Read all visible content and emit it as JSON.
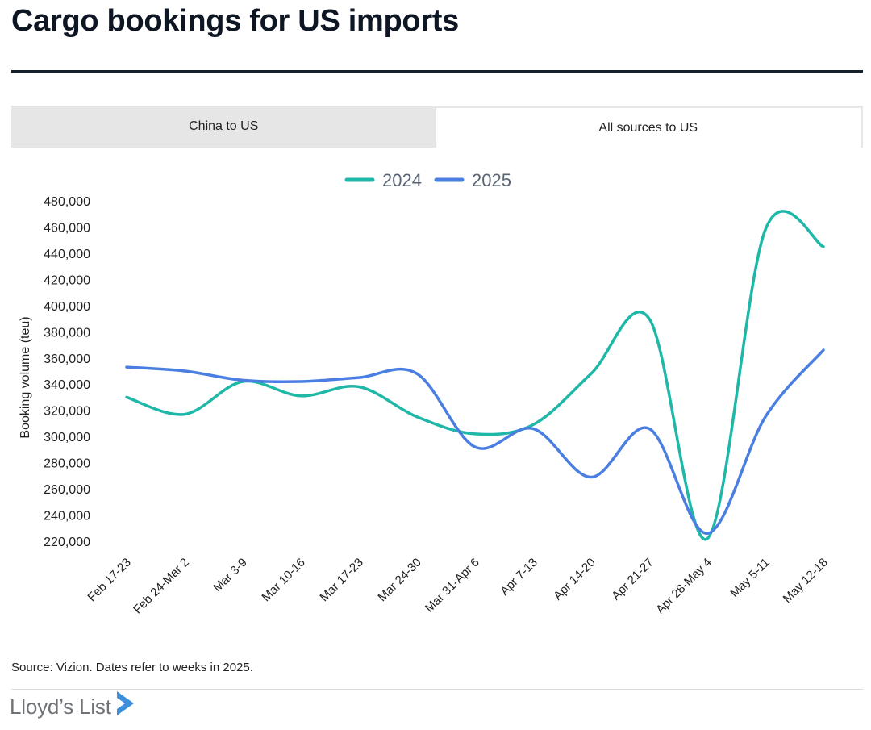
{
  "header": {
    "title": "Cargo bookings for US imports"
  },
  "tabs": [
    {
      "label": "China to US",
      "active": false
    },
    {
      "label": "All sources to US",
      "active": true
    }
  ],
  "chart_data": {
    "type": "line",
    "title": "",
    "xlabel": "",
    "ylabel": "Booking volume (teu)",
    "ylim": [
      220000,
      480000
    ],
    "yticks": [
      220000,
      240000,
      260000,
      280000,
      300000,
      320000,
      340000,
      360000,
      380000,
      400000,
      420000,
      440000,
      460000,
      480000
    ],
    "ytick_labels": [
      "220,000",
      "240,000",
      "260,000",
      "280,000",
      "300,000",
      "320,000",
      "340,000",
      "360,000",
      "380,000",
      "400,000",
      "420,000",
      "440,000",
      "460,000",
      "480,000"
    ],
    "categories": [
      "Feb 17-23",
      "Feb 24-Mar 2",
      "Mar 3-9",
      "Mar 10-16",
      "Mar 17-23",
      "Mar 24-30",
      "Mar 31-Apr 6",
      "Apr 7-13",
      "Apr 14-20",
      "Apr 21-27",
      "Apr 28-May 4",
      "May 5-11",
      "May 12-18"
    ],
    "legend_position": "top-center",
    "grid": false,
    "series": [
      {
        "name": "2024",
        "color": "#1fb8a8",
        "values": [
          330000,
          317000,
          342000,
          331000,
          338000,
          315000,
          302000,
          309000,
          348000,
          390000,
          222000,
          458000,
          445000
        ]
      },
      {
        "name": "2025",
        "color": "#4a7ee0",
        "values": [
          353000,
          350000,
          343000,
          342000,
          345000,
          348000,
          292000,
          306000,
          269000,
          306000,
          226000,
          315000,
          366000
        ]
      }
    ]
  },
  "footer": {
    "source": "Source: Vizion. Dates refer to weeks in 2025.",
    "logo_text": "Lloyd’s List",
    "logo_mark_color": "#3d8fd9"
  }
}
